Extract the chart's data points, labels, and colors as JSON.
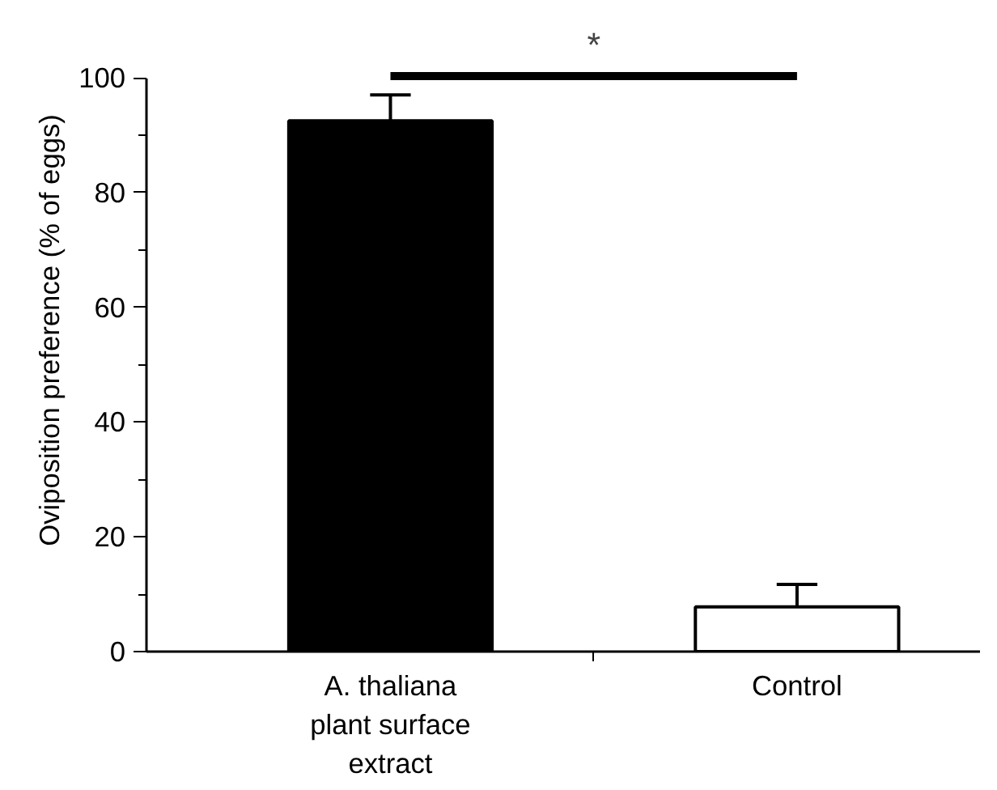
{
  "chart_data": {
    "type": "bar",
    "categories": [
      "A. thaliana\nplant surface\nextract",
      "Control"
    ],
    "values": [
      92.5,
      7.8
    ],
    "colors": [
      "#000000",
      "#ffffff"
    ],
    "errors": [
      [
        92.5,
        97.0
      ],
      [
        7.8,
        11.7
      ]
    ],
    "ylabel": "Oviposition preference (% of eggs)",
    "ylim": [
      0,
      100
    ],
    "yticks": [
      0,
      20,
      40,
      60,
      80,
      100
    ],
    "annotations": [
      "*"
    ],
    "grid": false
  }
}
